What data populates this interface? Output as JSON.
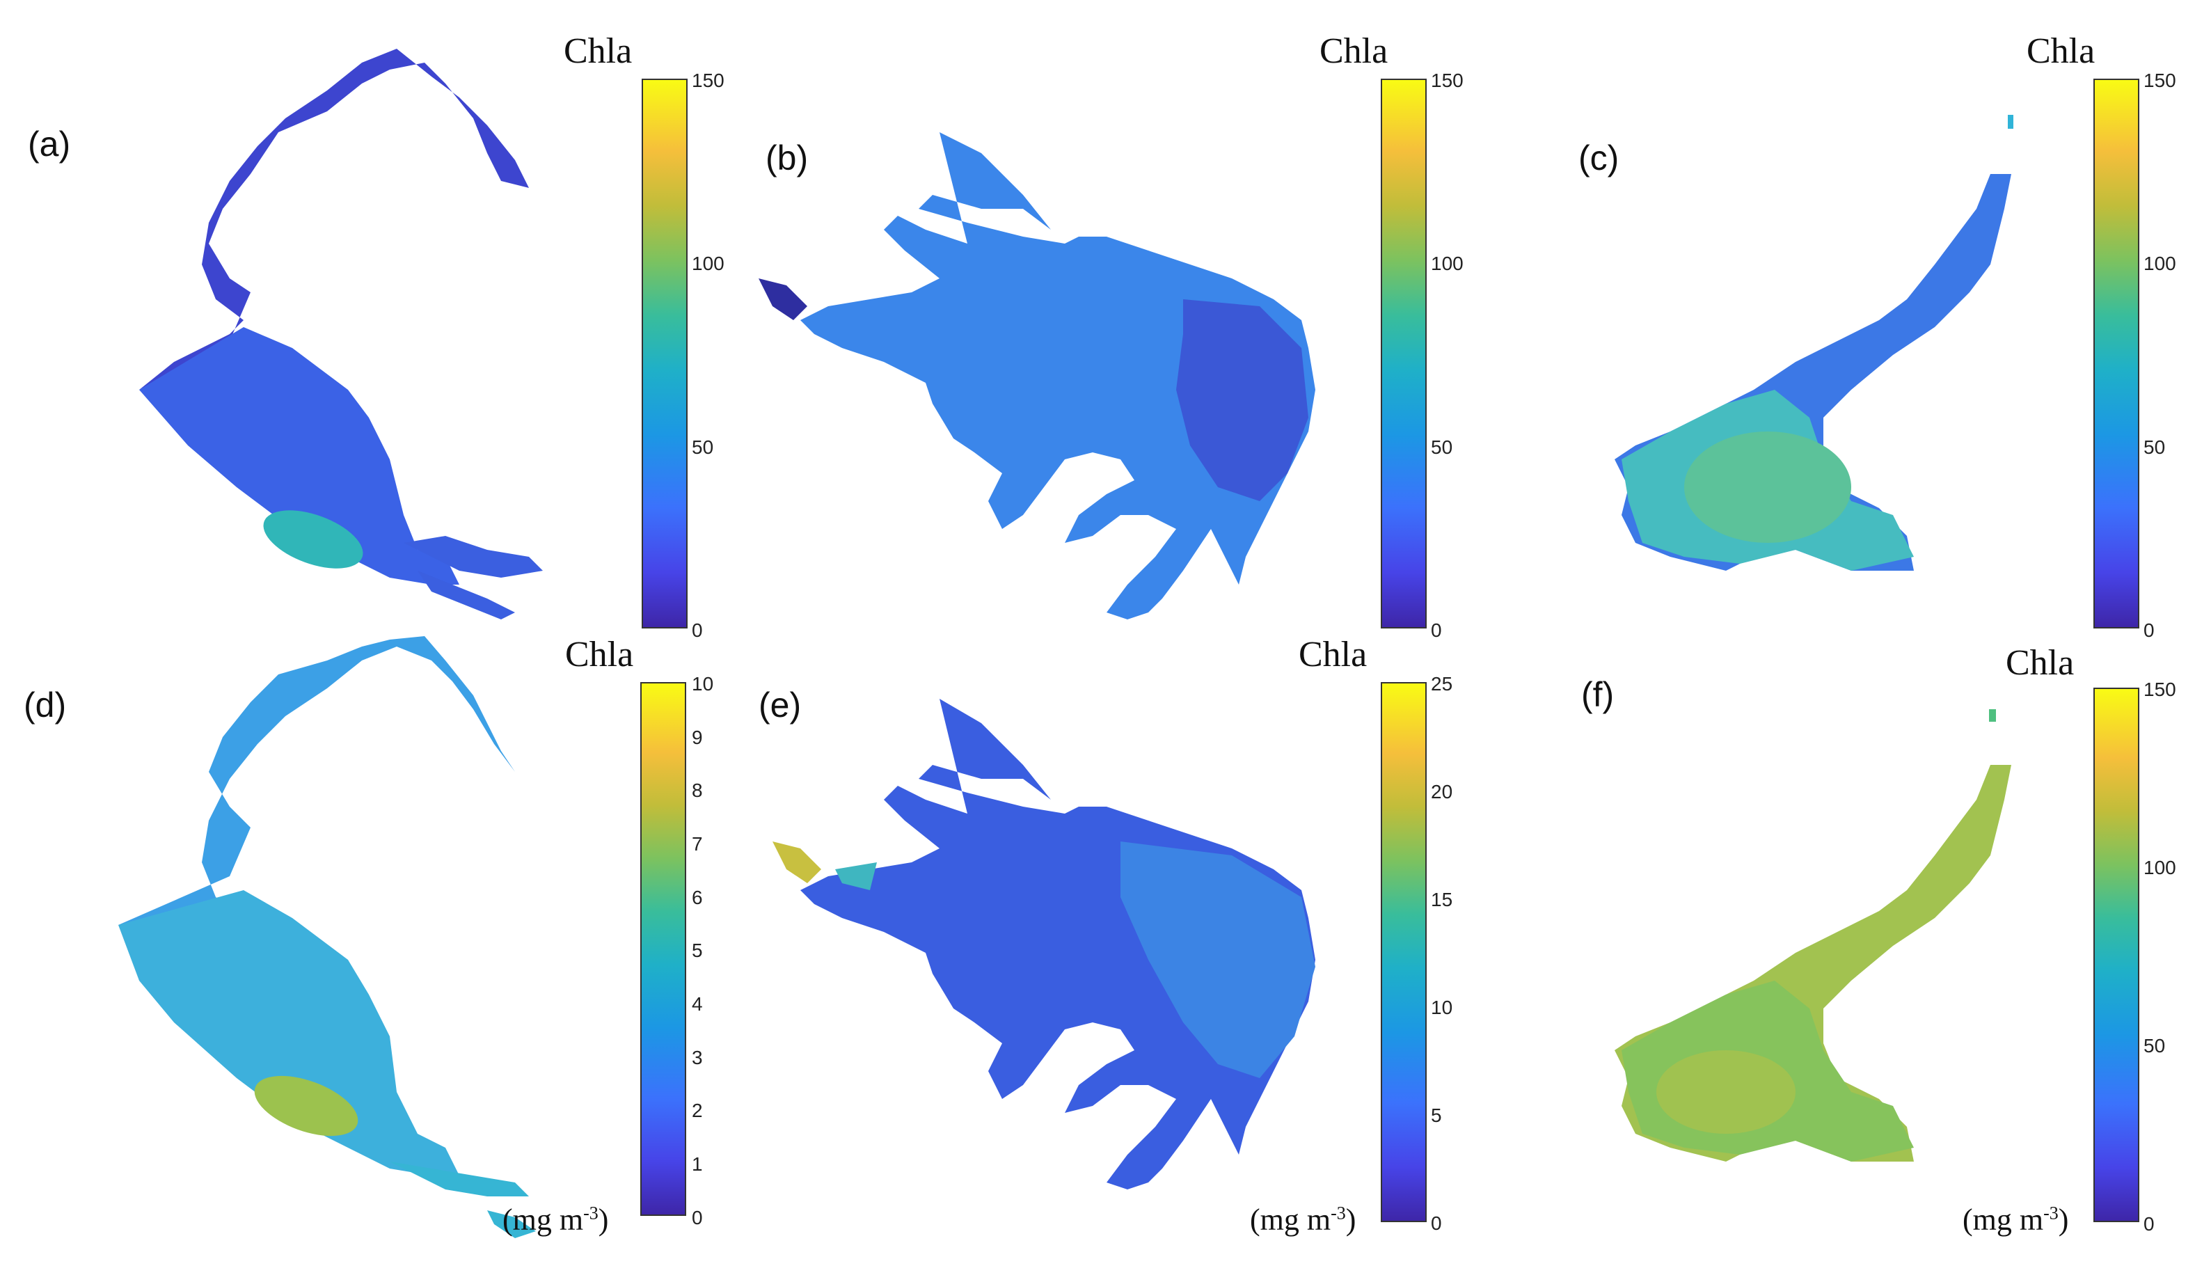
{
  "figure": {
    "panels": [
      {
        "id": "a",
        "label": "(a)",
        "colorbar": {
          "title": "Chla",
          "units": "",
          "ticks": [
            "0",
            "50",
            "100",
            "150"
          ],
          "min": 0,
          "max": 150
        },
        "mean_color": "#3a5fe4"
      },
      {
        "id": "b",
        "label": "(b)",
        "colorbar": {
          "title": "Chla",
          "units": "",
          "ticks": [
            "0",
            "50",
            "100",
            "150"
          ],
          "min": 0,
          "max": 150
        },
        "mean_color": "#3d7ded"
      },
      {
        "id": "c",
        "label": "(c)",
        "colorbar": {
          "title": "Chla",
          "units": "",
          "ticks": [
            "0",
            "50",
            "100",
            "150"
          ],
          "min": 0,
          "max": 150
        },
        "mean_color": "#4a8de8"
      },
      {
        "id": "d",
        "label": "(d)",
        "colorbar": {
          "title": "Chla",
          "units": "(mg m-3)",
          "ticks": [
            "0",
            "1",
            "2",
            "3",
            "4",
            "5",
            "6",
            "7",
            "8",
            "9",
            "10"
          ],
          "min": 0,
          "max": 10
        },
        "mean_color": "#35a4e2"
      },
      {
        "id": "e",
        "label": "(e)",
        "colorbar": {
          "title": "Chla",
          "units": "(mg m-3)",
          "ticks": [
            "0",
            "5",
            "10",
            "15",
            "20",
            "25"
          ],
          "min": 0,
          "max": 25
        },
        "mean_color": "#3a62dc"
      },
      {
        "id": "f",
        "label": "(f)",
        "colorbar": {
          "title": "Chla",
          "units": "(mg m-3)",
          "ticks": [
            "0",
            "50",
            "100",
            "150"
          ],
          "min": 0,
          "max": 150
        },
        "mean_color": "#8cc45a"
      }
    ],
    "colormap": "parula"
  }
}
